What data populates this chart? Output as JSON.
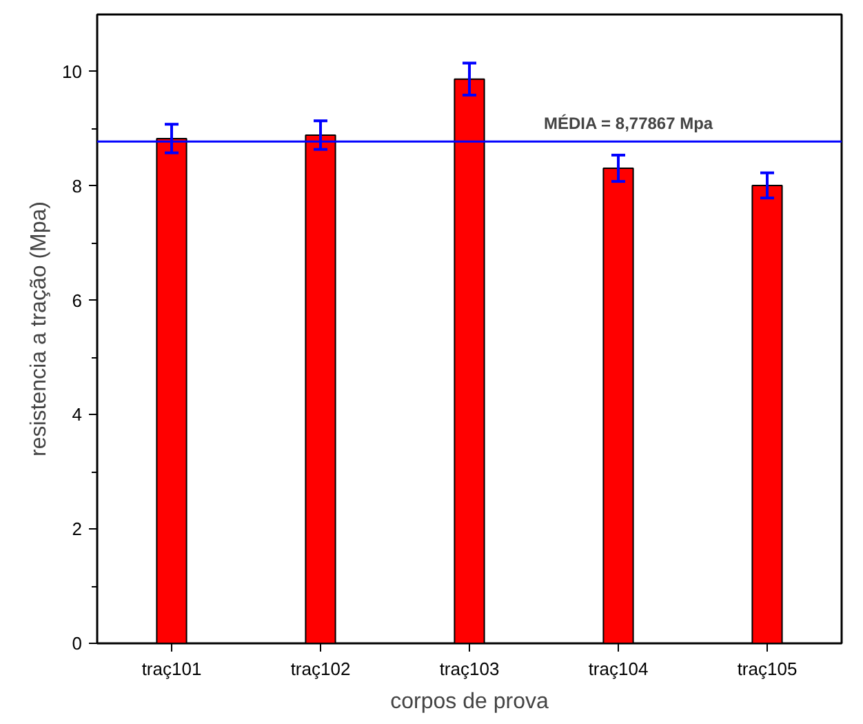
{
  "chart_data": {
    "type": "bar",
    "xlabel": "corpos de prova",
    "ylabel": "resistencia a tração (Mpa)",
    "categories": [
      "traç101",
      "traç102",
      "traç103",
      "traç104",
      "traç105"
    ],
    "values": [
      8.83,
      8.89,
      9.87,
      8.31,
      8.01
    ],
    "errors": [
      0.25,
      0.25,
      0.28,
      0.23,
      0.22
    ],
    "color": "#ff0000",
    "ylim": [
      0,
      11
    ],
    "yticks": [
      0,
      2,
      4,
      6,
      8,
      10
    ],
    "grid": false,
    "ref_lines": [
      {
        "axis": "y",
        "value": 8.77867,
        "label": "MÉDIA = 8,77867 Mpa",
        "color": "#0000ff"
      }
    ]
  }
}
